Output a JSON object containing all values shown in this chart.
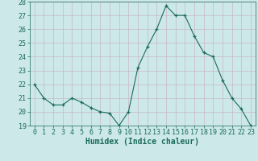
{
  "x": [
    0,
    1,
    2,
    3,
    4,
    5,
    6,
    7,
    8,
    9,
    10,
    11,
    12,
    13,
    14,
    15,
    16,
    17,
    18,
    19,
    20,
    21,
    22,
    23
  ],
  "y": [
    22,
    21,
    20.5,
    20.5,
    21,
    20.7,
    20.3,
    20.0,
    19.9,
    19.0,
    20.0,
    23.2,
    24.7,
    26.0,
    27.7,
    27.0,
    27.0,
    25.5,
    24.3,
    24.0,
    22.3,
    21.0,
    20.2,
    19.0
  ],
  "xlabel": "Humidex (Indice chaleur)",
  "ylim": [
    19,
    28
  ],
  "yticks": [
    19,
    20,
    21,
    22,
    23,
    24,
    25,
    26,
    27,
    28
  ],
  "xticks": [
    0,
    1,
    2,
    3,
    4,
    5,
    6,
    7,
    8,
    9,
    10,
    11,
    12,
    13,
    14,
    15,
    16,
    17,
    18,
    19,
    20,
    21,
    22,
    23
  ],
  "line_color": "#1a6b5a",
  "marker_color": "#1a6b5a",
  "bg_color": "#cce8e8",
  "grid_color": "#d0e8e8",
  "axis_label_color": "#1a6b5a",
  "tick_color": "#1a6b5a",
  "font_size": 6,
  "xlabel_fontsize": 7
}
